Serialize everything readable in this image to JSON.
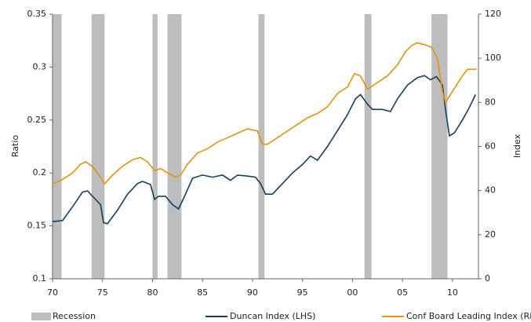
{
  "chart_data": {
    "type": "line",
    "y_label": "Ratio",
    "y2_label": "Index",
    "xlim": [
      1970,
      2012.6
    ],
    "xticks": [
      {
        "value": 1970,
        "label": "70"
      },
      {
        "value": 1975,
        "label": "75"
      },
      {
        "value": 1980,
        "label": "80"
      },
      {
        "value": 1985,
        "label": "85"
      },
      {
        "value": 1990,
        "label": "90"
      },
      {
        "value": 1995,
        "label": "95"
      },
      {
        "value": 2000,
        "label": "00"
      },
      {
        "value": 2005,
        "label": "05"
      },
      {
        "value": 2010,
        "label": "10"
      }
    ],
    "ylim": [
      0.1,
      0.35
    ],
    "yticks": [
      0.1,
      0.15,
      0.2,
      0.25,
      0.3,
      0.35
    ],
    "y2lim": [
      0,
      120
    ],
    "y2ticks": [
      0,
      20,
      40,
      60,
      80,
      100,
      120
    ],
    "grid": false,
    "recession": {
      "name": "Recession",
      "color": "#bdbdbd",
      "periods": [
        [
          1970.0,
          1970.9
        ],
        [
          1973.9,
          1975.2
        ],
        [
          1980.0,
          1980.5
        ],
        [
          1981.5,
          1982.9
        ],
        [
          1990.6,
          1991.2
        ],
        [
          2001.2,
          2001.9
        ],
        [
          2007.9,
          2009.5
        ]
      ]
    },
    "series": [
      {
        "name": "Duncan Index (LHS)",
        "color": "#13405f",
        "axis": "y",
        "x": [
          1970,
          1971,
          1972,
          1973,
          1973.5,
          1974,
          1974.8,
          1975.1,
          1975.5,
          1976.5,
          1977.5,
          1978.5,
          1979,
          1979.8,
          1980.2,
          1980.6,
          1981.3,
          1982,
          1982.6,
          1983.2,
          1984,
          1985,
          1986,
          1987,
          1987.8,
          1988.5,
          1989.5,
          1990.3,
          1990.8,
          1991.3,
          1992,
          1993,
          1994,
          1995,
          1995.8,
          1996.5,
          1997.5,
          1998.5,
          1999.5,
          2000.3,
          2000.8,
          2001.5,
          2002,
          2003,
          2003.8,
          2004.5,
          2005.5,
          2006.5,
          2007.2,
          2007.8,
          2008.4,
          2009,
          2009.3,
          2009.7,
          2010.2,
          2011,
          2011.7,
          2012.3
        ],
        "values": [
          0.154,
          0.155,
          0.168,
          0.182,
          0.183,
          0.178,
          0.17,
          0.153,
          0.152,
          0.165,
          0.18,
          0.19,
          0.192,
          0.189,
          0.175,
          0.178,
          0.178,
          0.17,
          0.166,
          0.178,
          0.195,
          0.198,
          0.196,
          0.198,
          0.193,
          0.198,
          0.197,
          0.196,
          0.19,
          0.18,
          0.18,
          0.19,
          0.2,
          0.208,
          0.216,
          0.212,
          0.225,
          0.24,
          0.255,
          0.27,
          0.274,
          0.265,
          0.26,
          0.26,
          0.258,
          0.27,
          0.283,
          0.29,
          0.292,
          0.288,
          0.291,
          0.283,
          0.26,
          0.235,
          0.238,
          0.25,
          0.262,
          0.274
        ]
      },
      {
        "name": "Conf Board Leading Index (RHS)",
        "color": "#e8900e",
        "axis": "y2",
        "x": [
          1970,
          1971,
          1972,
          1972.8,
          1973.3,
          1974,
          1974.8,
          1975.2,
          1976,
          1977,
          1978,
          1978.8,
          1979.5,
          1980.2,
          1980.8,
          1981.5,
          1982.3,
          1982.8,
          1983.5,
          1984.5,
          1985.5,
          1986.5,
          1987.5,
          1988.5,
          1989.5,
          1990.5,
          1991,
          1991.5,
          1992.5,
          1993.5,
          1994.5,
          1995.5,
          1996.5,
          1997.5,
          1998.5,
          1999.5,
          2000.2,
          2000.8,
          2001.5,
          2002.5,
          2003.5,
          2004.5,
          2005.3,
          2006,
          2006.5,
          2007.3,
          2007.9,
          2008.5,
          2009,
          2009.3,
          2010,
          2011,
          2011.5,
          2012,
          2012.4
        ],
        "values": [
          43,
          45,
          48,
          52,
          53,
          51,
          46,
          43,
          47,
          51,
          54,
          55,
          53,
          49,
          50,
          48,
          46,
          47,
          52,
          57,
          59,
          62,
          64,
          66,
          68,
          67,
          61,
          61,
          64,
          67,
          70,
          73,
          75,
          78,
          84,
          87,
          93,
          92,
          86,
          89,
          92,
          97,
          103,
          106,
          107,
          106,
          105,
          100,
          85,
          80,
          85,
          92,
          95,
          95,
          95
        ]
      }
    ]
  }
}
